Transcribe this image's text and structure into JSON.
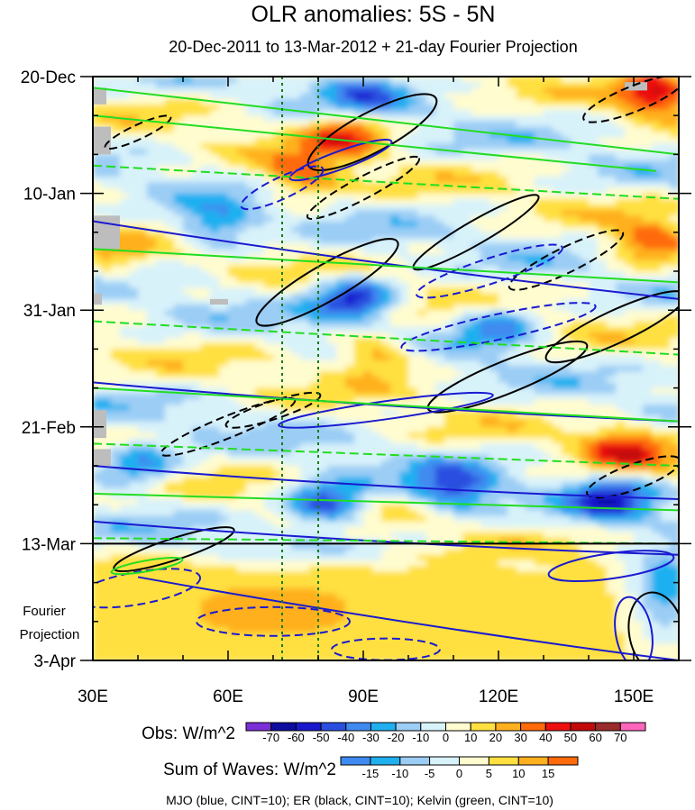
{
  "chart_data": {
    "type": "heatmap",
    "title": "OLR anomalies: 5S - 5N",
    "subtitle": "20-Dec-2011 to 13-Mar-2012 + 21-day Fourier Projection",
    "x_axis": {
      "range": [
        30,
        160
      ],
      "ticks": [
        30,
        60,
        90,
        120,
        150
      ],
      "tick_labels": [
        "30E",
        "60E",
        "90E",
        "120E",
        "150E"
      ]
    },
    "y_axis": {
      "range_days_from_start": [
        0,
        105
      ],
      "ticks": [
        0,
        21,
        42,
        63,
        84,
        105
      ],
      "tick_labels": [
        "20-Dec",
        "10-Jan",
        "31-Jan",
        "21-Feb",
        "13-Mar",
        "3-Apr"
      ],
      "projection_label": [
        "Fourier",
        "Projection"
      ]
    },
    "observation_end_day": 84,
    "reference_longitudes": [
      72,
      80
    ],
    "obs_colorbar": {
      "label": "Obs: W/m^2",
      "levels": [
        -70,
        -60,
        -50,
        -40,
        -30,
        -20,
        -10,
        0,
        10,
        20,
        30,
        40,
        50,
        60,
        70
      ],
      "colors": [
        "#7b2fd6",
        "#0c0c9e",
        "#1818cc",
        "#2a4fe0",
        "#3f8af0",
        "#1fb0f0",
        "#9bcdf5",
        "#d8f2fa",
        "#fffccf",
        "#ffe040",
        "#ffb01f",
        "#ff6a0a",
        "#ee1010",
        "#c20a0a",
        "#9a2b2b",
        "#ff66bb"
      ]
    },
    "wave_colorbar": {
      "label": "Sum of Waves: W/m^2",
      "levels": [
        -15,
        -10,
        -5,
        0,
        5,
        10,
        15
      ],
      "colors": [
        "#3f8af0",
        "#1fb0f0",
        "#9bcdf5",
        "#d8f2fa",
        "#fffccf",
        "#ffe040",
        "#ffb01f",
        "#ff6a0a"
      ]
    },
    "contour_legend": "MJO (blue, CINT=10); ER (black, CINT=10); Kelvin (green, CINT=10)",
    "contour_series": [
      {
        "name": "MJO",
        "color": "#1a1ad0",
        "cint": 10
      },
      {
        "name": "ER",
        "color": "#000000",
        "cint": 10
      },
      {
        "name": "Kelvin",
        "color": "#22dd22",
        "cint": 10
      }
    ],
    "anomaly_features": [
      {
        "type": "positive",
        "lon": 86,
        "day": 10,
        "value": 45
      },
      {
        "type": "positive",
        "lon": 76,
        "day": 18,
        "value": 40
      },
      {
        "type": "positive",
        "lon": 155,
        "day": 3,
        "value": 50
      },
      {
        "type": "positive",
        "lon": 153,
        "day": 30,
        "value": 40
      },
      {
        "type": "positive",
        "lon": 93,
        "day": 50,
        "value": 40
      },
      {
        "type": "positive",
        "lon": 148,
        "day": 67,
        "value": 45
      },
      {
        "type": "positive",
        "lon": 34,
        "day": 33,
        "value": 20
      },
      {
        "type": "negative",
        "lon": 90,
        "day": 3,
        "value": -40
      },
      {
        "type": "negative",
        "lon": 88,
        "day": 40,
        "value": -60
      },
      {
        "type": "negative",
        "lon": 120,
        "day": 45,
        "value": -40
      },
      {
        "type": "negative",
        "lon": 57,
        "day": 27,
        "value": -40
      },
      {
        "type": "negative",
        "lon": 82,
        "day": 77,
        "value": -60
      },
      {
        "type": "negative",
        "lon": 110,
        "day": 74,
        "value": -50
      },
      {
        "type": "negative",
        "lon": 145,
        "day": 76,
        "value": -50
      },
      {
        "type": "negative",
        "lon": 40,
        "day": 70,
        "value": -40
      },
      {
        "type": "negative",
        "lon": 157,
        "day": 90,
        "value": -30
      },
      {
        "type": "positive",
        "lon": 70,
        "day": 96,
        "value": 20
      }
    ]
  }
}
